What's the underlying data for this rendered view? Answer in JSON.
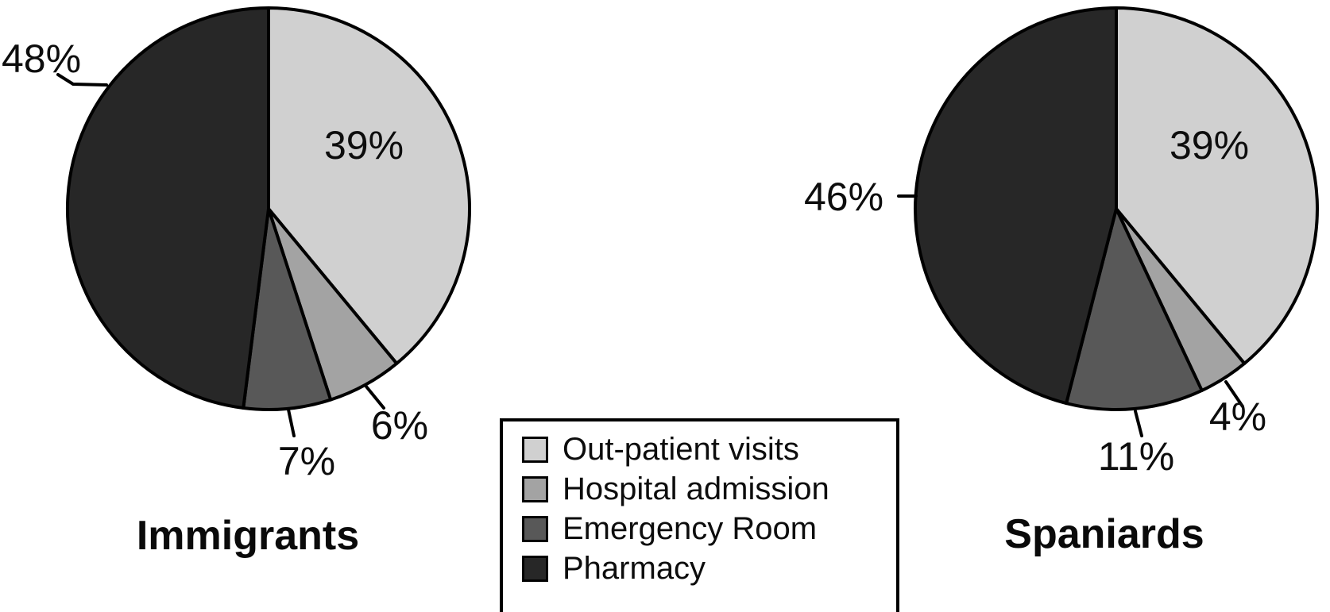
{
  "figure": {
    "background_color": "#ffffff",
    "description": "Two monochrome pie charts comparing healthcare service use"
  },
  "chart_data": [
    {
      "type": "pie",
      "title": "Immigrants",
      "categories": [
        "Out-patient visits",
        "Hospital admission",
        "Emergency Room",
        "Pharmacy"
      ],
      "values": [
        39,
        6,
        7,
        48
      ],
      "value_labels": [
        "39%",
        "6%",
        "7%",
        "48%"
      ],
      "colors": [
        "#d0d0d0",
        "#a3a3a3",
        "#585858",
        "#272727"
      ],
      "start_angle_deg": 0,
      "direction": "clockwise",
      "outline_color": "#000000"
    },
    {
      "type": "pie",
      "title": "Spaniards",
      "categories": [
        "Out-patient visits",
        "Hospital admission",
        "Emergency Room",
        "Pharmacy"
      ],
      "values": [
        39,
        4,
        11,
        46
      ],
      "value_labels": [
        "39%",
        "4%",
        "11%",
        "46%"
      ],
      "colors": [
        "#d0d0d0",
        "#a3a3a3",
        "#585858",
        "#272727"
      ],
      "start_angle_deg": 0,
      "direction": "clockwise",
      "outline_color": "#000000"
    }
  ],
  "legend": {
    "position": "bottom-center",
    "border_color": "#000000",
    "items": [
      {
        "label": "Out-patient visits",
        "color": "#d0d0d0"
      },
      {
        "label": "Hospital admission",
        "color": "#a3a3a3"
      },
      {
        "label": "Emergency Room",
        "color": "#585858"
      },
      {
        "label": "Pharmacy",
        "color": "#272727"
      }
    ]
  }
}
